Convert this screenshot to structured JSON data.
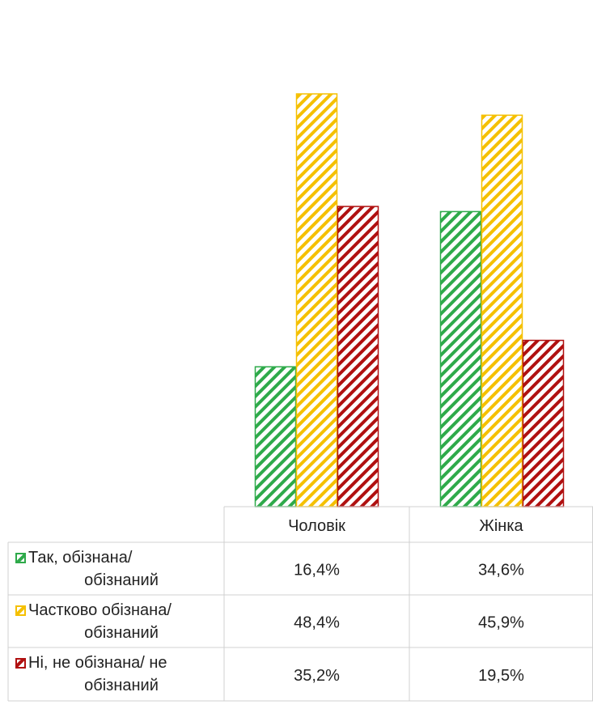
{
  "chart_data": {
    "type": "bar",
    "categories": [
      "Чоловік",
      "Жінка"
    ],
    "series": [
      {
        "name": "Так, обізнана/ обізнаний",
        "name_lines": [
          "Так, обізнана/",
          "обізнаний"
        ],
        "values": [
          16.4,
          34.6
        ],
        "labels": [
          "16,4%",
          "34,6%"
        ],
        "color": "#2eaa4a"
      },
      {
        "name": "Частково обізнана/ обізнаний",
        "name_lines": [
          "Частково обізнана/",
          "обізнаний"
        ],
        "values": [
          48.4,
          45.9
        ],
        "labels": [
          "48,4%",
          "45,9%"
        ],
        "color": "#f5c000"
      },
      {
        "name": "Ні, не обізнана/ не обізнаний",
        "name_lines": [
          "Ні, не обізнана/ не",
          "обізнаний"
        ],
        "values": [
          35.2,
          19.5
        ],
        "labels": [
          "35,2%",
          "19,5%"
        ],
        "color": "#b01010"
      }
    ],
    "ylim": [
      0,
      52
    ],
    "grid": false,
    "legend": "table-left",
    "pattern": "diagonal-hatch"
  }
}
